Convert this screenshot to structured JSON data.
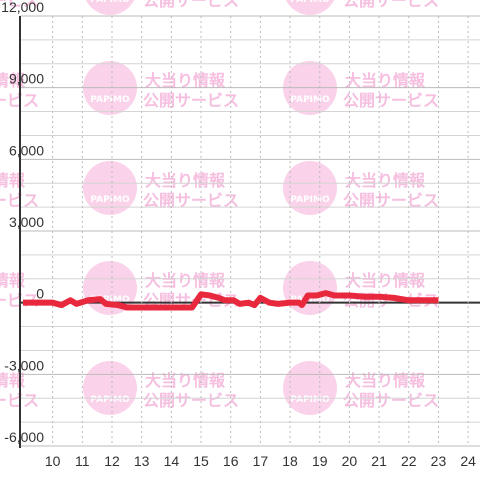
{
  "chart_data": {
    "type": "line",
    "watermark": {
      "line1": "大当り情報",
      "line2": "公開サービス",
      "logo": "PAPIMO"
    },
    "x": [
      9.0,
      10.0,
      10.3,
      10.6,
      10.8,
      11.2,
      11.6,
      11.8,
      12.2,
      12.5,
      13.0,
      14.0,
      14.7,
      15.0,
      15.3,
      15.6,
      15.8,
      16.1,
      16.3,
      16.6,
      16.8,
      17.0,
      17.3,
      17.6,
      18.0,
      18.3,
      18.4,
      18.6,
      18.9,
      19.2,
      19.5,
      20.0,
      20.5,
      21.0,
      21.5,
      22.0,
      22.5,
      23.0
    ],
    "series": [
      {
        "color": "#e8283c",
        "values": [
          0,
          0,
          -100,
          100,
          -50,
          100,
          150,
          -50,
          -100,
          -200,
          -200,
          -200,
          -200,
          350,
          300,
          200,
          100,
          100,
          -50,
          0,
          -100,
          200,
          0,
          -50,
          0,
          0,
          -100,
          300,
          300,
          400,
          300,
          300,
          250,
          250,
          200,
          100,
          100,
          100
        ]
      }
    ],
    "xlim": [
      8.9,
      24.4
    ],
    "xticks": [
      10,
      11,
      12,
      13,
      14,
      15,
      16,
      17,
      18,
      19,
      20,
      21,
      22,
      23,
      24
    ],
    "ylim": [
      -6000,
      12000
    ],
    "yticks": [
      {
        "value": -6000,
        "label": "-6,000"
      },
      {
        "value": -3000,
        "label": "-3,000"
      },
      0,
      {
        "value": 3000,
        "label": "3,000"
      },
      {
        "value": 6000,
        "label": "6,000"
      },
      {
        "value": 9000,
        "label": "9,000"
      },
      {
        "value": 12000,
        "label": "12,000"
      }
    ],
    "minor_yticks": [
      -5000,
      -4000,
      -2000,
      -1000,
      1000,
      2000,
      4000,
      5000,
      7000,
      8000,
      10000,
      11000
    ],
    "grid": true
  }
}
